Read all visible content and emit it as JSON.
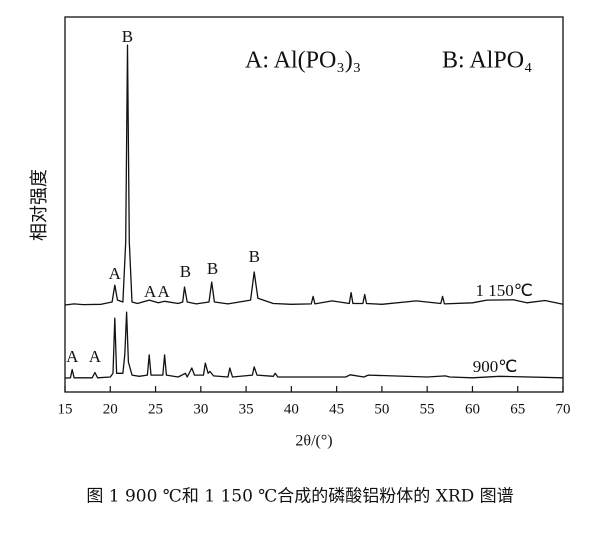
{
  "chart_data": {
    "type": "line",
    "x_label": "2θ/(°)",
    "y_label": "相对强度",
    "caption": "图 1   900 ℃和 1 150 ℃合成的磷酸铝粉体的 XRD 图谱",
    "legend_notes": [
      "A: Al(PO₃)₃",
      "B: AlPO₄"
    ],
    "xlim": [
      15,
      70
    ],
    "xticks": [
      15,
      20,
      25,
      30,
      35,
      40,
      45,
      50,
      55,
      60,
      65,
      70
    ],
    "ylim": [
      0,
      100
    ],
    "series": [
      {
        "name": "1 150℃",
        "color": "#111111",
        "label_pos": [
          63.5,
          26.7
        ],
        "x": [
          15,
          16,
          17,
          19,
          20.2,
          20.5,
          20.8,
          21.4,
          21.7,
          21.9,
          22.1,
          22.4,
          23,
          24.3,
          25.3,
          26,
          27.5,
          28,
          28.2,
          28.5,
          29.5,
          30.9,
          31.2,
          31.5,
          33,
          35.5,
          35.9,
          36.3,
          38,
          40,
          42.2,
          42.4,
          42.6,
          44.5,
          46.4,
          46.6,
          46.8,
          47.9,
          48.1,
          48.3,
          50,
          53.8,
          56.5,
          56.7,
          56.9,
          60,
          61.6,
          64.5,
          66,
          68,
          70
        ],
        "values": [
          23.2,
          23.5,
          23.3,
          23.4,
          24,
          28.5,
          24.5,
          24,
          40,
          92.5,
          40,
          24,
          23.6,
          24.5,
          23.8,
          24.2,
          23.6,
          24,
          28,
          24,
          23.5,
          24,
          29.3,
          24,
          23.5,
          24.5,
          32,
          25,
          23.6,
          23.4,
          23.5,
          25.5,
          23.5,
          24.3,
          23.6,
          26.5,
          23.6,
          23.6,
          26,
          23.6,
          23.4,
          24.3,
          23.6,
          25.5,
          23.5,
          23.8,
          24.5,
          24.6,
          23.8,
          24.4,
          23.4
        ]
      },
      {
        "name": "900℃",
        "color": "#111111",
        "label_pos": [
          62.5,
          6.4
        ],
        "x": [
          15,
          15.6,
          15.8,
          16,
          18,
          18.3,
          18.6,
          20,
          20.3,
          20.5,
          20.7,
          21.4,
          21.6,
          21.8,
          22,
          22.4,
          23.2,
          24.1,
          24.3,
          24.5,
          25.8,
          26,
          26.2,
          27.5,
          28.3,
          28.5,
          29,
          29.3,
          30.3,
          30.5,
          30.8,
          31,
          31.4,
          33,
          33.2,
          33.5,
          35.7,
          35.9,
          36.2,
          38,
          38.2,
          38.5,
          46,
          46.5,
          48,
          48.5,
          55,
          57,
          57.5,
          60,
          63,
          70
        ],
        "values": [
          3.7,
          3.8,
          6,
          3.8,
          3.8,
          5.2,
          3.8,
          4,
          5,
          19.7,
          5,
          5,
          10,
          21.3,
          8,
          4.5,
          4.2,
          4.5,
          9.9,
          4.5,
          4.5,
          9.9,
          4.5,
          4,
          5,
          4,
          6.4,
          4.5,
          4.5,
          7.7,
          5,
          5.5,
          4.3,
          4,
          6.4,
          4,
          4.5,
          6.7,
          4.5,
          4.2,
          5,
          4,
          4,
          4.6,
          4,
          4.5,
          4,
          4.3,
          4,
          3.8,
          4.2,
          3.8
        ]
      }
    ],
    "annotations": [
      {
        "text": "B",
        "x": 21.9,
        "y": 94.4
      },
      {
        "text": "A",
        "x": 20.5,
        "y": 31.2
      },
      {
        "text": "A",
        "x": 24.4,
        "y": 26.4
      },
      {
        "text": "A",
        "x": 25.9,
        "y": 26.4
      },
      {
        "text": "B",
        "x": 28.3,
        "y": 31.7
      },
      {
        "text": "B",
        "x": 31.3,
        "y": 32.5
      },
      {
        "text": "B",
        "x": 35.9,
        "y": 35.7
      },
      {
        "text": "A",
        "x": 15.8,
        "y": 9
      },
      {
        "text": "A",
        "x": 18.3,
        "y": 9
      }
    ]
  }
}
